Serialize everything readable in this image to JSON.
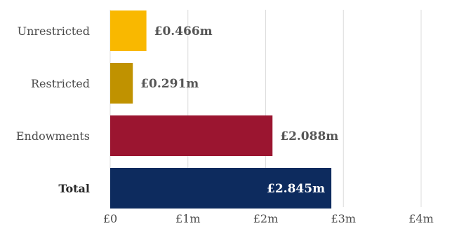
{
  "chart_data": {
    "type": "bar",
    "orientation": "horizontal",
    "categories": [
      "Unrestricted",
      "Restricted",
      "Endowments",
      "Total"
    ],
    "values": [
      0.466,
      0.291,
      2.088,
      2.845
    ],
    "data_labels": [
      "£0.466m",
      "£0.291m",
      "£2.088m",
      "£2.845m"
    ],
    "bar_colors": [
      "#f9b800",
      "#c09200",
      "#9b1530",
      "#0d2b5e"
    ],
    "label_colors": [
      "#555555",
      "#555555",
      "#555555",
      "#ffffff"
    ],
    "label_inside": [
      false,
      false,
      false,
      true
    ],
    "bold_categories": [
      false,
      false,
      false,
      true
    ],
    "x_ticks": [
      0,
      1,
      2,
      3,
      4
    ],
    "x_tick_labels": [
      "£0",
      "£1m",
      "£2m",
      "£3m",
      "£4m"
    ],
    "xlim": [
      0,
      4
    ],
    "grid": true,
    "title": "",
    "xlabel": "",
    "ylabel": ""
  }
}
